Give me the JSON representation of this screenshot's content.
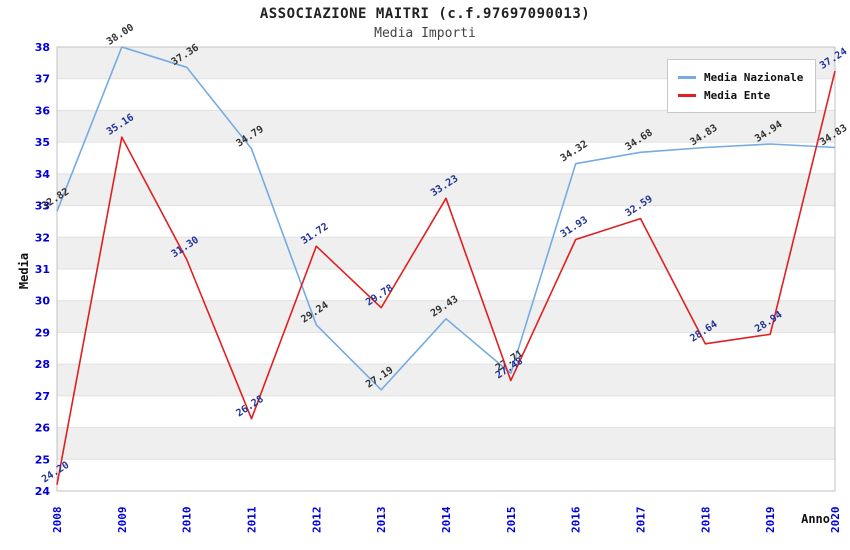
{
  "header": {
    "title": "ASSOCIAZIONE MAITRI (c.f.97697090013)",
    "subtitle": "Media Importi"
  },
  "legend": {
    "items": [
      {
        "label": "Media Nazionale",
        "color": "#75abe2"
      },
      {
        "label": "Media Ente",
        "color": "#e02020"
      }
    ]
  },
  "chart_data": {
    "type": "line",
    "title": "ASSOCIAZIONE MAITRI (c.f.97697090013)",
    "subtitle": "Media Importi",
    "xlabel": "Anno",
    "ylabel": "Media",
    "x": [
      2008,
      2009,
      2010,
      2011,
      2012,
      2013,
      2014,
      2015,
      2016,
      2017,
      2018,
      2019,
      2020
    ],
    "series": [
      {
        "name": "Media Nazionale",
        "color": "#75abe2",
        "label_color": "#333333",
        "values": [
          32.82,
          38.0,
          37.36,
          34.79,
          29.24,
          27.19,
          29.43,
          27.71,
          34.32,
          34.68,
          34.83,
          34.94,
          34.83
        ]
      },
      {
        "name": "Media Ente",
        "color": "#e02020",
        "label_color": "#223399",
        "values": [
          24.2,
          35.16,
          31.3,
          26.28,
          31.72,
          29.78,
          33.23,
          27.48,
          31.93,
          32.59,
          28.64,
          28.94,
          37.24
        ]
      }
    ],
    "ylim": [
      24,
      38
    ],
    "ytick_step": 1,
    "grid": "alternating horizontal bands, gridline at every integer",
    "legend_position": "top-right",
    "tick_label_color": "#0000dd",
    "band_color": "#efefef",
    "gridline_color": "#e0e0e0",
    "border_color": "#c0c0c0"
  }
}
